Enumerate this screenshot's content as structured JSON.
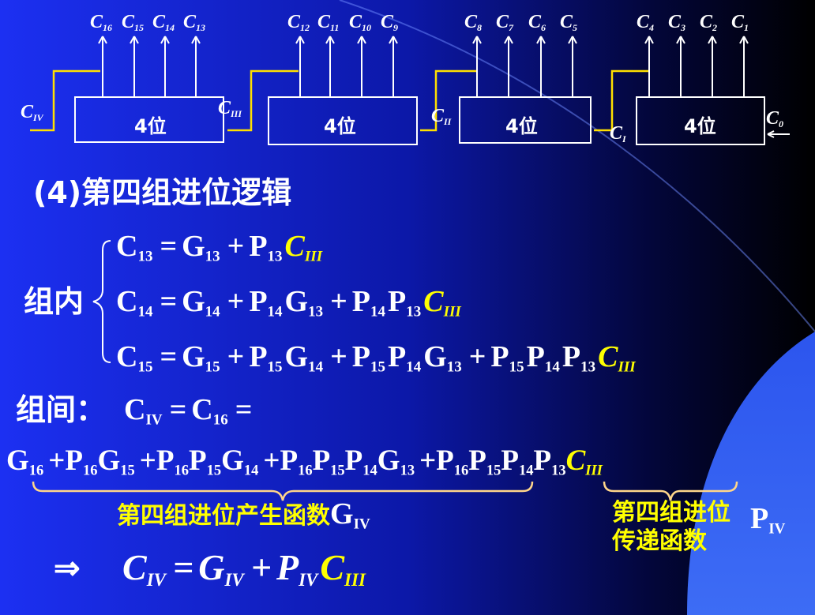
{
  "diagram": {
    "carries": [
      {
        "b": "C",
        "s": "16"
      },
      {
        "b": "C",
        "s": "15"
      },
      {
        "b": "C",
        "s": "14"
      },
      {
        "b": "C",
        "s": "13"
      },
      {
        "b": "C",
        "s": "12"
      },
      {
        "b": "C",
        "s": "11"
      },
      {
        "b": "C",
        "s": "10"
      },
      {
        "b": "C",
        "s": "9"
      },
      {
        "b": "C",
        "s": "8"
      },
      {
        "b": "C",
        "s": "7"
      },
      {
        "b": "C",
        "s": "6"
      },
      {
        "b": "C",
        "s": "5"
      },
      {
        "b": "C",
        "s": "4"
      },
      {
        "b": "C",
        "s": "3"
      },
      {
        "b": "C",
        "s": "2"
      },
      {
        "b": "C",
        "s": "1"
      }
    ],
    "groups": [
      "4位",
      "4位",
      "4位",
      "4位"
    ],
    "links": [
      {
        "b": "C",
        "s": "IV"
      },
      {
        "b": "C",
        "s": "III"
      },
      {
        "b": "C",
        "s": "II"
      },
      {
        "b": "C",
        "s": "I"
      },
      {
        "b": "C",
        "s": "0"
      }
    ]
  },
  "title": "(4)第四组进位逻辑",
  "intra": {
    "label": "组内",
    "equations": [
      [
        {
          "b": "C",
          "s": "13"
        },
        {
          "b": "="
        },
        {
          "b": "G",
          "s": "13"
        },
        {
          "b": "+"
        },
        {
          "b": "P",
          "s": "13"
        },
        {
          "b": "C",
          "s": "III",
          "color": "#ffff00",
          "style": "italic"
        }
      ],
      [
        {
          "b": "C",
          "s": "14"
        },
        {
          "b": "="
        },
        {
          "b": "G",
          "s": "14"
        },
        {
          "b": "+"
        },
        {
          "b": "P",
          "s": "14"
        },
        {
          "b": "G",
          "s": "13"
        },
        {
          "b": "+"
        },
        {
          "b": "P",
          "s": "14"
        },
        {
          "b": "P",
          "s": "13"
        },
        {
          "b": "C",
          "s": "III",
          "color": "#ffff00",
          "style": "italic"
        }
      ],
      [
        {
          "b": "C",
          "s": "15"
        },
        {
          "b": "="
        },
        {
          "b": "G",
          "s": "15"
        },
        {
          "b": "+"
        },
        {
          "b": "P",
          "s": "15"
        },
        {
          "b": "G",
          "s": "14"
        },
        {
          "b": "+"
        },
        {
          "b": "P",
          "s": "15"
        },
        {
          "b": "P",
          "s": "14"
        },
        {
          "b": "G",
          "s": "13"
        },
        {
          "b": "+"
        },
        {
          "b": "P",
          "s": "15"
        },
        {
          "b": "P",
          "s": "14"
        },
        {
          "b": "P",
          "s": "13"
        },
        {
          "b": "C",
          "s": "III",
          "color": "#ffff00",
          "style": "italic"
        }
      ]
    ]
  },
  "inter": {
    "label": "组间：",
    "equation": [
      {
        "b": "C",
        "s": "IV"
      },
      {
        "b": "="
      },
      {
        "b": "C",
        "s": "16"
      },
      {
        "b": "="
      }
    ],
    "expansion": [
      {
        "b": "G",
        "s": "16"
      },
      {
        "b": "+"
      },
      {
        "b": "P",
        "s": "16"
      },
      {
        "b": "G",
        "s": "15"
      },
      {
        "b": "+"
      },
      {
        "b": "P",
        "s": "16"
      },
      {
        "b": "P",
        "s": "15"
      },
      {
        "b": "G",
        "s": "14"
      },
      {
        "b": "+"
      },
      {
        "b": "P",
        "s": "16"
      },
      {
        "b": "P",
        "s": "15"
      },
      {
        "b": "P",
        "s": "14"
      },
      {
        "b": "G",
        "s": "13"
      },
      {
        "b": "+"
      },
      {
        "b": "P",
        "s": "16"
      },
      {
        "b": "P",
        "s": "15"
      },
      {
        "b": "P",
        "s": "14"
      },
      {
        "b": "P",
        "s": "13"
      },
      {
        "b": "C",
        "s": "III",
        "color": "#ffff00",
        "style": "italic"
      }
    ]
  },
  "notes": [
    {
      "lines": [
        "第四组进位产生函数"
      ],
      "symbol": {
        "b": "G",
        "s": "IV"
      }
    },
    {
      "lines": [
        "第四组进位",
        "传递函数"
      ],
      "symbol": {
        "b": "P",
        "s": "IV"
      }
    }
  ],
  "result": {
    "arrow": "⇒",
    "equation": [
      {
        "b": "C",
        "s": "IV"
      },
      {
        "b": "="
      },
      {
        "b": "G",
        "s": "IV"
      },
      {
        "b": "+"
      },
      {
        "b": "P",
        "s": "IV"
      },
      {
        "b": "C",
        "s": "III",
        "color": "#ffff00"
      }
    ],
    "style": "italic"
  }
}
